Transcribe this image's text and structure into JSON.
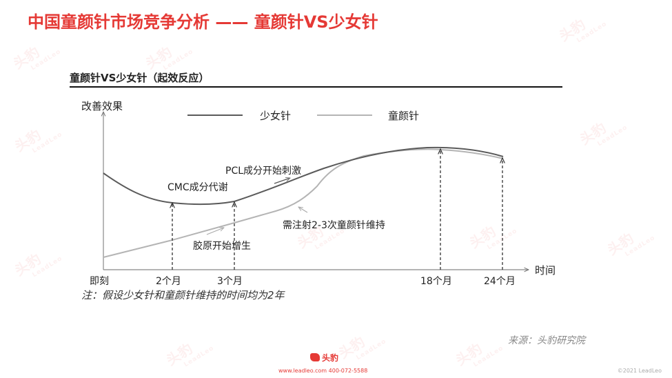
{
  "header": {
    "title": "中国童颜针市场竞争分析 —— 童颜针VS少女针"
  },
  "figure": {
    "subtitle": "童颜针VS少女针（起效反应）",
    "y_axis_label": "改善效果",
    "x_axis_label": "时间",
    "legend": [
      {
        "name": "少女针",
        "color": "#5a5a5a"
      },
      {
        "name": "童颜针",
        "color": "#b4b4b4"
      }
    ],
    "x_ticks": [
      "即刻",
      "2个月",
      "3个月",
      "18个月",
      "24个月"
    ],
    "annotations": {
      "cmc": "CMC成分代谢",
      "pcl": "PCL成分开始刺激",
      "inject": "需注射2-3次童颜针维持",
      "collagen": "胶原开始增生"
    },
    "note": "注：假设少女针和童颜针维持的时间均为2年"
  },
  "footer": {
    "source": "来源：头豹研究院",
    "logo_text": "头豹",
    "links": "www.leadleo.com   400-072-5588",
    "copyright": "©2021 LeadLeo"
  },
  "watermark": {
    "text": "头豹",
    "sub": "LeadLeo"
  },
  "colors": {
    "accent": "#e53935",
    "dark_line": "#5a5a5a",
    "light_line": "#b4b4b4"
  }
}
